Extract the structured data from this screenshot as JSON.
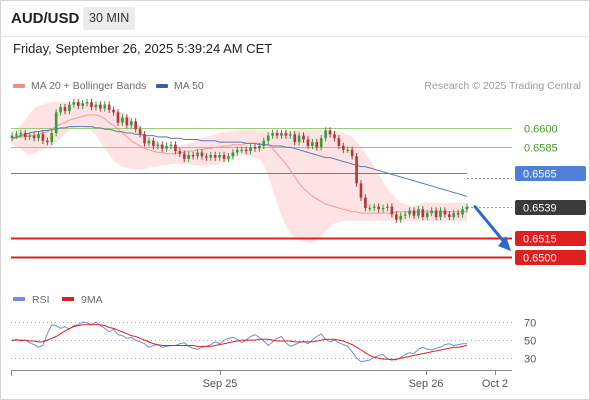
{
  "header": {
    "symbol": "AUD/USD",
    "timeframe": "30 MIN",
    "datetime": "Friday, September 26, 2025 5:39:24 AM CET"
  },
  "legend": {
    "items": [
      {
        "label": "MA 20 + Bollinger Bands",
        "color": "#f28b8b"
      },
      {
        "label": "MA 50",
        "color": "#3b5fa3"
      }
    ],
    "credit": "Research © 2025 Trading Central"
  },
  "colors": {
    "bull": "#3a9b3a",
    "bear": "#b13a3a",
    "band_fill": "#fde3e3",
    "ma20": "#f09a9a",
    "ma50": "#5b7ab8",
    "green_level": "#9ccc7a",
    "blue_level": "#4f7fd6",
    "red_level": "#e02020",
    "last_label": "#3a3a3a",
    "rsi": "#6f8fdc",
    "rsi_ma": "#e02020",
    "arrow": "#2f67c8"
  },
  "chart_data": [
    {
      "type": "candlestick",
      "title": "AUD/USD 30 MIN",
      "ylim": [
        0.6483,
        0.6627
      ],
      "x_ticks": [
        "Sep 25",
        "Sep 26",
        "Oct 2"
      ],
      "levels": [
        {
          "value": 0.66,
          "label": "0.6600",
          "style": "green"
        },
        {
          "value": 0.6585,
          "label": "0.6585",
          "style": "green"
        },
        {
          "value": 0.6565,
          "label": "0.6565",
          "style": "blue"
        },
        {
          "value": 0.6539,
          "label": "0.6539",
          "style": "last"
        },
        {
          "value": 0.6515,
          "label": "0.6515",
          "style": "red"
        },
        {
          "value": 0.65,
          "label": "0.6500",
          "style": "red"
        }
      ],
      "close": [
        0.6594,
        0.6595,
        0.6596,
        0.6593,
        0.6594,
        0.6592,
        0.6595,
        0.659,
        0.6589,
        0.6596,
        0.6612,
        0.6616,
        0.6613,
        0.6618,
        0.662,
        0.6617,
        0.6619,
        0.662,
        0.6616,
        0.6618,
        0.6615,
        0.6618,
        0.6614,
        0.6612,
        0.6604,
        0.6608,
        0.6602,
        0.6605,
        0.6599,
        0.6595,
        0.6588,
        0.659,
        0.6586,
        0.6587,
        0.6584,
        0.6586,
        0.6587,
        0.6582,
        0.658,
        0.6576,
        0.6579,
        0.6578,
        0.6581,
        0.6578,
        0.6577,
        0.6579,
        0.6577,
        0.6579,
        0.6576,
        0.6578,
        0.6581,
        0.6583,
        0.6583,
        0.6582,
        0.6585,
        0.6584,
        0.6586,
        0.659,
        0.6594,
        0.6596,
        0.6594,
        0.6596,
        0.6594,
        0.6595,
        0.6589,
        0.6594,
        0.6591,
        0.6586,
        0.6589,
        0.6585,
        0.6592,
        0.6598,
        0.6595,
        0.6592,
        0.6586,
        0.6583,
        0.6583,
        0.6578,
        0.6557,
        0.6546,
        0.6538,
        0.6538,
        0.6539,
        0.6537,
        0.6538,
        0.6539,
        0.6533,
        0.6529,
        0.6532,
        0.6533,
        0.6536,
        0.6532,
        0.6537,
        0.6531,
        0.6534,
        0.6536,
        0.6531,
        0.6536,
        0.6533,
        0.6531,
        0.6534,
        0.6533,
        0.6537,
        0.6539
      ],
      "ma20": [
        0.6592,
        0.6592,
        0.6593,
        0.6593,
        0.6594,
        0.6594,
        0.6595,
        0.6596,
        0.6597,
        0.6599,
        0.6601,
        0.6603,
        0.6604,
        0.6606,
        0.6607,
        0.6608,
        0.6609,
        0.661,
        0.661,
        0.661,
        0.6609,
        0.6607,
        0.6604,
        0.6602,
        0.6599,
        0.6596,
        0.6593,
        0.659,
        0.6588,
        0.6586,
        0.6584,
        0.6583,
        0.6582,
        0.6581,
        0.6581,
        0.658,
        0.658,
        0.658,
        0.6581,
        0.6581,
        0.6582,
        0.6582,
        0.6583,
        0.6583,
        0.6584,
        0.6584,
        0.6585,
        0.6585,
        0.6586,
        0.6586,
        0.6587,
        0.6587,
        0.6587,
        0.6588,
        0.6588,
        0.6588,
        0.6588,
        0.6587,
        0.6587,
        0.6584,
        0.658,
        0.6576,
        0.6572,
        0.6567,
        0.6562,
        0.6557,
        0.6553,
        0.655,
        0.6547,
        0.6545,
        0.6543,
        0.6541,
        0.654,
        0.6539,
        0.6538,
        0.6537,
        0.6536,
        0.6535,
        0.6535,
        0.6534,
        0.6534,
        0.6534,
        0.6534,
        0.6534,
        0.6534,
        0.6534,
        0.6534,
        0.6535,
        0.6535,
        0.6535,
        0.6535,
        0.6535,
        0.6535,
        0.6535,
        0.6535,
        0.6535,
        0.6535,
        0.6535,
        0.6535,
        0.6535,
        0.6535,
        0.6535,
        0.6535,
        0.6535
      ],
      "bb_upper": [
        0.6597,
        0.6599,
        0.6602,
        0.6606,
        0.6611,
        0.6615,
        0.6617,
        0.6618,
        0.6619,
        0.662,
        0.662,
        0.662,
        0.662,
        0.662,
        0.662,
        0.662,
        0.662,
        0.6619,
        0.6619,
        0.6618,
        0.6617,
        0.6616,
        0.6615,
        0.6614,
        0.6613,
        0.6612,
        0.661,
        0.6607,
        0.6604,
        0.66,
        0.6596,
        0.6593,
        0.6591,
        0.6589,
        0.6587,
        0.6586,
        0.6586,
        0.6586,
        0.6586,
        0.6587,
        0.6588,
        0.6589,
        0.6591,
        0.6592,
        0.6593,
        0.6594,
        0.6595,
        0.6596,
        0.6597,
        0.6597,
        0.6598,
        0.6598,
        0.6599,
        0.6599,
        0.6599,
        0.6599,
        0.6598,
        0.6598,
        0.6597,
        0.6597,
        0.6597,
        0.6597,
        0.6598,
        0.6598,
        0.6598,
        0.6599,
        0.6599,
        0.6599,
        0.6599,
        0.6599,
        0.6599,
        0.6599,
        0.6598,
        0.6598,
        0.6597,
        0.6596,
        0.6595,
        0.6593,
        0.6589,
        0.6585,
        0.658,
        0.6575,
        0.657,
        0.6564,
        0.6558,
        0.6553,
        0.6549,
        0.6545,
        0.6542,
        0.6541,
        0.654,
        0.654,
        0.6541,
        0.6542,
        0.6542,
        0.6542,
        0.6542,
        0.6542,
        0.6542,
        0.6542,
        0.6542,
        0.6542,
        0.6542,
        0.6542
      ],
      "bb_lower": [
        0.6587,
        0.6586,
        0.6584,
        0.6581,
        0.6579,
        0.658,
        0.6582,
        0.6583,
        0.6584,
        0.6586,
        0.6589,
        0.6592,
        0.6595,
        0.6598,
        0.66,
        0.6601,
        0.6601,
        0.66,
        0.6598,
        0.6594,
        0.6589,
        0.6584,
        0.6579,
        0.6575,
        0.6572,
        0.657,
        0.6569,
        0.6568,
        0.6568,
        0.6568,
        0.6568,
        0.6569,
        0.657,
        0.657,
        0.6571,
        0.6571,
        0.6572,
        0.6572,
        0.6572,
        0.6572,
        0.6572,
        0.6571,
        0.6571,
        0.657,
        0.657,
        0.6571,
        0.6571,
        0.6572,
        0.6574,
        0.6576,
        0.6577,
        0.6578,
        0.6579,
        0.6579,
        0.6578,
        0.6577,
        0.6576,
        0.6571,
        0.6563,
        0.6553,
        0.6542,
        0.6532,
        0.6524,
        0.6518,
        0.6515,
        0.6513,
        0.6512,
        0.6511,
        0.6511,
        0.6513,
        0.6516,
        0.652,
        0.6523,
        0.6526,
        0.6527,
        0.6528,
        0.6528,
        0.6528,
        0.6528,
        0.6528,
        0.6528,
        0.6528,
        0.6528,
        0.6528,
        0.6528,
        0.6528,
        0.6528,
        0.6528,
        0.6528,
        0.6528,
        0.6528,
        0.6528,
        0.6528,
        0.6528,
        0.6528,
        0.6528,
        0.6528,
        0.6528,
        0.6528,
        0.6528,
        0.6528,
        0.6528,
        0.6528,
        0.6528
      ],
      "ma50": [
        0.6592,
        0.6593,
        0.6594,
        0.6595,
        0.6596,
        0.6597,
        0.6597,
        0.6598,
        0.6598,
        0.6599,
        0.6599,
        0.66,
        0.66,
        0.6601,
        0.6601,
        0.6601,
        0.6601,
        0.6601,
        0.6601,
        0.66,
        0.66,
        0.6599,
        0.6599,
        0.6598,
        0.6597,
        0.6597,
        0.6596,
        0.6596,
        0.6595,
        0.6595,
        0.6594,
        0.6594,
        0.6594,
        0.6593,
        0.6593,
        0.6593,
        0.6592,
        0.6592,
        0.6592,
        0.6591,
        0.6591,
        0.6591,
        0.6591,
        0.659,
        0.659,
        0.659,
        0.659,
        0.6589,
        0.6589,
        0.6589,
        0.6589,
        0.6589,
        0.6589,
        0.6588,
        0.6588,
        0.6588,
        0.6587,
        0.6587,
        0.6587,
        0.6586,
        0.6586,
        0.6586,
        0.6585,
        0.6585,
        0.6584,
        0.6583,
        0.6582,
        0.6581,
        0.658,
        0.6579,
        0.6578,
        0.6577,
        0.6577,
        0.6576,
        0.6575,
        0.6574,
        0.6573,
        0.6572,
        0.6571,
        0.657,
        0.657,
        0.6569,
        0.6568,
        0.6567,
        0.6566,
        0.6565,
        0.6564,
        0.6563,
        0.6562,
        0.6561,
        0.656,
        0.6559,
        0.6558,
        0.6557,
        0.6556,
        0.6555,
        0.6554,
        0.6553,
        0.6552,
        0.6551,
        0.655,
        0.6549,
        0.6548,
        0.6547
      ],
      "projection": {
        "from": 0.6539,
        "to": 0.6507
      }
    },
    {
      "type": "line",
      "title": "RSI",
      "ylim": [
        18,
        80
      ],
      "y_ticks": [
        70,
        50,
        30
      ],
      "series": [
        {
          "name": "RSI",
          "values": [
            49,
            51,
            49,
            50,
            47,
            45,
            42,
            44,
            57,
            67,
            66,
            63,
            65,
            62,
            66,
            67,
            70,
            69,
            67,
            70,
            66,
            63,
            59,
            62,
            56,
            55,
            52,
            53,
            50,
            48,
            46,
            42,
            44,
            45,
            42,
            43,
            44,
            44,
            46,
            47,
            43,
            41,
            40,
            42,
            43,
            45,
            48,
            46,
            50,
            52,
            53,
            51,
            47,
            50,
            54,
            56,
            53,
            49,
            44,
            48,
            52,
            54,
            47,
            43,
            45,
            47,
            49,
            46,
            50,
            54,
            57,
            51,
            48,
            50,
            47,
            45,
            43,
            37,
            30,
            26,
            27,
            28,
            31,
            33,
            34,
            29,
            29,
            28,
            31,
            34,
            36,
            35,
            40,
            42,
            40,
            39,
            41,
            42,
            45,
            46,
            44,
            45,
            46,
            46
          ]
        },
        {
          "name": "9MA",
          "values": [
            50,
            50,
            50,
            50,
            49,
            49,
            48,
            48,
            50,
            52,
            54,
            57,
            60,
            63,
            65,
            66,
            67,
            67,
            67,
            67,
            67,
            66,
            64,
            63,
            61,
            59,
            57,
            55,
            54,
            52,
            50,
            48,
            46,
            45,
            44,
            44,
            44,
            44,
            44,
            44,
            44,
            44,
            43,
            43,
            43,
            43,
            44,
            45,
            46,
            47,
            48,
            49,
            50,
            50,
            50,
            50,
            51,
            51,
            51,
            50,
            49,
            49,
            49,
            49,
            48,
            48,
            48,
            48,
            48,
            49,
            50,
            51,
            51,
            51,
            50,
            49,
            47,
            45,
            42,
            39,
            36,
            33,
            31,
            30,
            29,
            29,
            28,
            29,
            30,
            31,
            32,
            33,
            34,
            35,
            36,
            37,
            38,
            39,
            40,
            41,
            42,
            42,
            43,
            44
          ]
        }
      ]
    }
  ]
}
